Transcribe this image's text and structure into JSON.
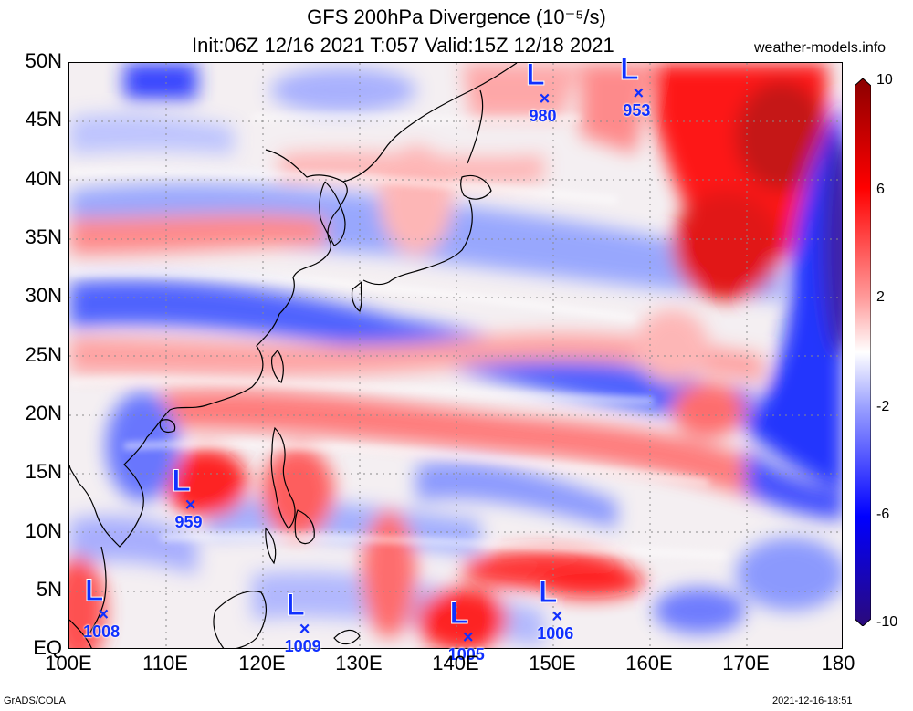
{
  "title": {
    "line1": "GFS 200hPa Divergence (10⁻⁵/s)",
    "line2": "Init:06Z 12/16 2021 T:057 Valid:15Z 12/18 2021"
  },
  "source": "weather-models.info",
  "footer": {
    "left": "GrADS/COLA",
    "right": "2021-12-16-18:51"
  },
  "axes": {
    "lat_labels": [
      "50N",
      "45N",
      "40N",
      "35N",
      "30N",
      "25N",
      "20N",
      "15N",
      "10N",
      "5N",
      "EQ"
    ],
    "lon_labels": [
      "100E",
      "110E",
      "120E",
      "130E",
      "140E",
      "150E",
      "160E",
      "170E",
      "180"
    ]
  },
  "colorbar": {
    "labels": [
      "10",
      "6",
      "2",
      "-2",
      "-6",
      "-10"
    ],
    "colors": {
      "max": "#8b0000",
      "pos": "#ff0000",
      "zero": "#ffffff",
      "neg": "#0000ff",
      "min": "#2b0a7a"
    }
  },
  "lows": [
    {
      "letter": "L",
      "mark": "×",
      "pressure": "980",
      "lat": 46.8,
      "lon": 149.2
    },
    {
      "letter": "L",
      "mark": "×",
      "pressure": "953",
      "lat": 47.3,
      "lon": 158.9
    },
    {
      "letter": "L",
      "mark": "×",
      "pressure": "959",
      "lat": 12.2,
      "lon": 112.6
    },
    {
      "letter": "L",
      "mark": "×",
      "pressure": "1008",
      "lat": 2.9,
      "lon": 103.6
    },
    {
      "letter": "L",
      "mark": "×",
      "pressure": "1009",
      "lat": 1.6,
      "lon": 124.4
    },
    {
      "letter": "L",
      "mark": "×",
      "pressure": "1005",
      "lat": 0.9,
      "lon": 141.3
    },
    {
      "letter": "L",
      "mark": "×",
      "pressure": "1006",
      "lat": 2.7,
      "lon": 150.5
    }
  ]
}
